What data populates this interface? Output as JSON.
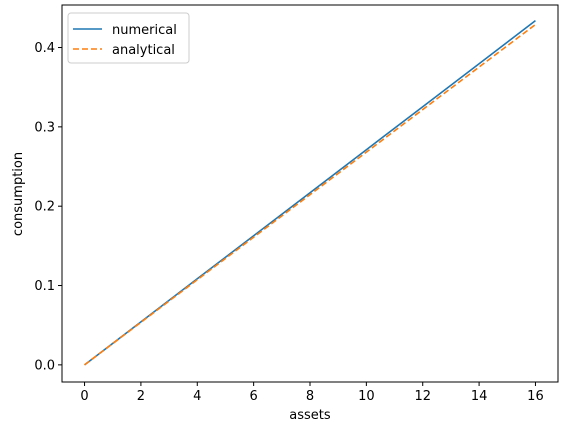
{
  "chart_data": {
    "type": "line",
    "title": "",
    "xlabel": "assets",
    "ylabel": "consumption",
    "xlim": [
      -0.8,
      16.8
    ],
    "ylim": [
      -0.0216,
      0.4536
    ],
    "xticks": [
      0,
      2,
      4,
      6,
      8,
      10,
      12,
      14,
      16
    ],
    "xtick_labels": [
      "0",
      "2",
      "4",
      "6",
      "8",
      "10",
      "12",
      "14",
      "16"
    ],
    "yticks": [
      0.0,
      0.1,
      0.2,
      0.3,
      0.4
    ],
    "ytick_labels": [
      "0.0",
      "0.1",
      "0.2",
      "0.3",
      "0.4"
    ],
    "grid": false,
    "legend_position": "upper-left",
    "series": [
      {
        "name": "numerical",
        "color": "#1f77b4",
        "style": "solid",
        "x": [
          0,
          2,
          4,
          6,
          8,
          10,
          12,
          14,
          16
        ],
        "y": [
          0.0,
          0.0542,
          0.1085,
          0.1627,
          0.2169,
          0.2712,
          0.3254,
          0.3796,
          0.4339
        ]
      },
      {
        "name": "analytical",
        "color": "#ff7f0e",
        "style": "dashed",
        "x": [
          0,
          2,
          4,
          6,
          8,
          10,
          12,
          14,
          16
        ],
        "y": [
          0.0,
          0.0536,
          0.1073,
          0.1609,
          0.2145,
          0.2681,
          0.3218,
          0.3754,
          0.429
        ]
      }
    ]
  }
}
